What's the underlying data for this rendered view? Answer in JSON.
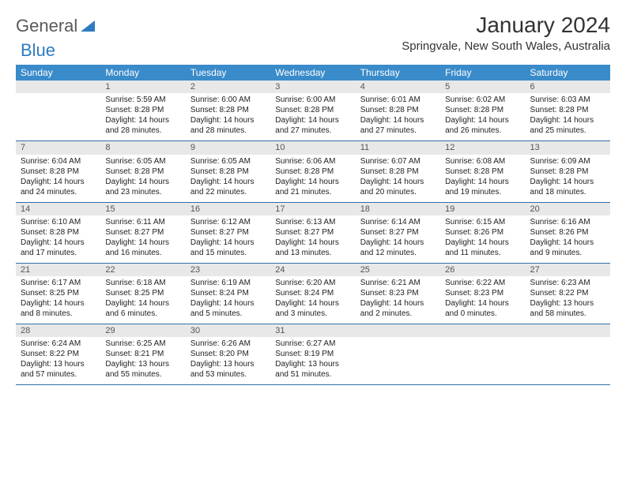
{
  "logo": {
    "part1": "General",
    "part2": "Blue"
  },
  "title": "January 2024",
  "location": "Springvale, New South Wales, Australia",
  "colors": {
    "header_bg": "#3a8bc9",
    "header_text": "#ffffff",
    "daynum_bg": "#e8e8e8",
    "row_divider": "#2f6fa8",
    "logo_gray": "#5a5a5a",
    "logo_blue": "#2f7bbf"
  },
  "weekdays": [
    "Sunday",
    "Monday",
    "Tuesday",
    "Wednesday",
    "Thursday",
    "Friday",
    "Saturday"
  ],
  "weeks": [
    [
      {
        "day": "",
        "lines": [
          "",
          "",
          "",
          ""
        ]
      },
      {
        "day": "1",
        "lines": [
          "Sunrise: 5:59 AM",
          "Sunset: 8:28 PM",
          "Daylight: 14 hours",
          "and 28 minutes."
        ]
      },
      {
        "day": "2",
        "lines": [
          "Sunrise: 6:00 AM",
          "Sunset: 8:28 PM",
          "Daylight: 14 hours",
          "and 28 minutes."
        ]
      },
      {
        "day": "3",
        "lines": [
          "Sunrise: 6:00 AM",
          "Sunset: 8:28 PM",
          "Daylight: 14 hours",
          "and 27 minutes."
        ]
      },
      {
        "day": "4",
        "lines": [
          "Sunrise: 6:01 AM",
          "Sunset: 8:28 PM",
          "Daylight: 14 hours",
          "and 27 minutes."
        ]
      },
      {
        "day": "5",
        "lines": [
          "Sunrise: 6:02 AM",
          "Sunset: 8:28 PM",
          "Daylight: 14 hours",
          "and 26 minutes."
        ]
      },
      {
        "day": "6",
        "lines": [
          "Sunrise: 6:03 AM",
          "Sunset: 8:28 PM",
          "Daylight: 14 hours",
          "and 25 minutes."
        ]
      }
    ],
    [
      {
        "day": "7",
        "lines": [
          "Sunrise: 6:04 AM",
          "Sunset: 8:28 PM",
          "Daylight: 14 hours",
          "and 24 minutes."
        ]
      },
      {
        "day": "8",
        "lines": [
          "Sunrise: 6:05 AM",
          "Sunset: 8:28 PM",
          "Daylight: 14 hours",
          "and 23 minutes."
        ]
      },
      {
        "day": "9",
        "lines": [
          "Sunrise: 6:05 AM",
          "Sunset: 8:28 PM",
          "Daylight: 14 hours",
          "and 22 minutes."
        ]
      },
      {
        "day": "10",
        "lines": [
          "Sunrise: 6:06 AM",
          "Sunset: 8:28 PM",
          "Daylight: 14 hours",
          "and 21 minutes."
        ]
      },
      {
        "day": "11",
        "lines": [
          "Sunrise: 6:07 AM",
          "Sunset: 8:28 PM",
          "Daylight: 14 hours",
          "and 20 minutes."
        ]
      },
      {
        "day": "12",
        "lines": [
          "Sunrise: 6:08 AM",
          "Sunset: 8:28 PM",
          "Daylight: 14 hours",
          "and 19 minutes."
        ]
      },
      {
        "day": "13",
        "lines": [
          "Sunrise: 6:09 AM",
          "Sunset: 8:28 PM",
          "Daylight: 14 hours",
          "and 18 minutes."
        ]
      }
    ],
    [
      {
        "day": "14",
        "lines": [
          "Sunrise: 6:10 AM",
          "Sunset: 8:28 PM",
          "Daylight: 14 hours",
          "and 17 minutes."
        ]
      },
      {
        "day": "15",
        "lines": [
          "Sunrise: 6:11 AM",
          "Sunset: 8:27 PM",
          "Daylight: 14 hours",
          "and 16 minutes."
        ]
      },
      {
        "day": "16",
        "lines": [
          "Sunrise: 6:12 AM",
          "Sunset: 8:27 PM",
          "Daylight: 14 hours",
          "and 15 minutes."
        ]
      },
      {
        "day": "17",
        "lines": [
          "Sunrise: 6:13 AM",
          "Sunset: 8:27 PM",
          "Daylight: 14 hours",
          "and 13 minutes."
        ]
      },
      {
        "day": "18",
        "lines": [
          "Sunrise: 6:14 AM",
          "Sunset: 8:27 PM",
          "Daylight: 14 hours",
          "and 12 minutes."
        ]
      },
      {
        "day": "19",
        "lines": [
          "Sunrise: 6:15 AM",
          "Sunset: 8:26 PM",
          "Daylight: 14 hours",
          "and 11 minutes."
        ]
      },
      {
        "day": "20",
        "lines": [
          "Sunrise: 6:16 AM",
          "Sunset: 8:26 PM",
          "Daylight: 14 hours",
          "and 9 minutes."
        ]
      }
    ],
    [
      {
        "day": "21",
        "lines": [
          "Sunrise: 6:17 AM",
          "Sunset: 8:25 PM",
          "Daylight: 14 hours",
          "and 8 minutes."
        ]
      },
      {
        "day": "22",
        "lines": [
          "Sunrise: 6:18 AM",
          "Sunset: 8:25 PM",
          "Daylight: 14 hours",
          "and 6 minutes."
        ]
      },
      {
        "day": "23",
        "lines": [
          "Sunrise: 6:19 AM",
          "Sunset: 8:24 PM",
          "Daylight: 14 hours",
          "and 5 minutes."
        ]
      },
      {
        "day": "24",
        "lines": [
          "Sunrise: 6:20 AM",
          "Sunset: 8:24 PM",
          "Daylight: 14 hours",
          "and 3 minutes."
        ]
      },
      {
        "day": "25",
        "lines": [
          "Sunrise: 6:21 AM",
          "Sunset: 8:23 PM",
          "Daylight: 14 hours",
          "and 2 minutes."
        ]
      },
      {
        "day": "26",
        "lines": [
          "Sunrise: 6:22 AM",
          "Sunset: 8:23 PM",
          "Daylight: 14 hours",
          "and 0 minutes."
        ]
      },
      {
        "day": "27",
        "lines": [
          "Sunrise: 6:23 AM",
          "Sunset: 8:22 PM",
          "Daylight: 13 hours",
          "and 58 minutes."
        ]
      }
    ],
    [
      {
        "day": "28",
        "lines": [
          "Sunrise: 6:24 AM",
          "Sunset: 8:22 PM",
          "Daylight: 13 hours",
          "and 57 minutes."
        ]
      },
      {
        "day": "29",
        "lines": [
          "Sunrise: 6:25 AM",
          "Sunset: 8:21 PM",
          "Daylight: 13 hours",
          "and 55 minutes."
        ]
      },
      {
        "day": "30",
        "lines": [
          "Sunrise: 6:26 AM",
          "Sunset: 8:20 PM",
          "Daylight: 13 hours",
          "and 53 minutes."
        ]
      },
      {
        "day": "31",
        "lines": [
          "Sunrise: 6:27 AM",
          "Sunset: 8:19 PM",
          "Daylight: 13 hours",
          "and 51 minutes."
        ]
      },
      {
        "day": "",
        "lines": [
          "",
          "",
          "",
          ""
        ]
      },
      {
        "day": "",
        "lines": [
          "",
          "",
          "",
          ""
        ]
      },
      {
        "day": "",
        "lines": [
          "",
          "",
          "",
          ""
        ]
      }
    ]
  ]
}
